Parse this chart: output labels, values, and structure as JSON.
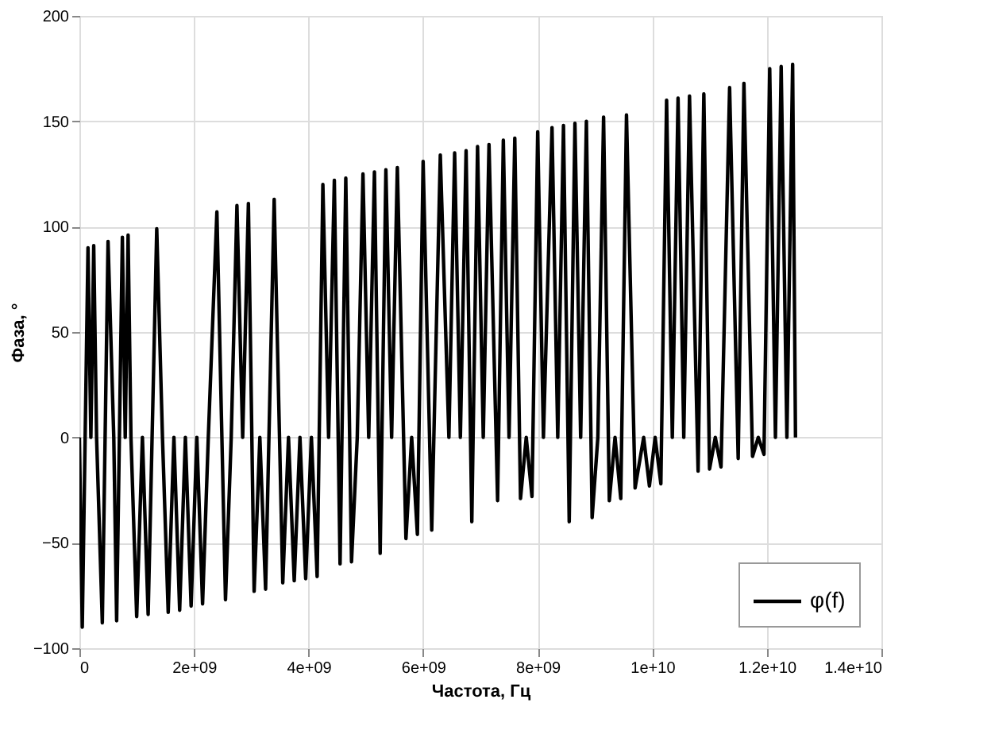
{
  "chart_data": {
    "type": "line",
    "xlabel": "Частота, Гц",
    "ylabel": "Фаза, °",
    "xlim": [
      0,
      14000000000.0
    ],
    "ylim": [
      -100,
      200
    ],
    "xticks": [
      0,
      {
        "value": 2000000000.0,
        "label": "2e+09"
      },
      {
        "value": 4000000000.0,
        "label": "4e+09"
      },
      {
        "value": 6000000000.0,
        "label": "6e+09"
      },
      {
        "value": 8000000000.0,
        "label": "8e+09"
      },
      {
        "value": 10000000000.0,
        "label": "1e+10"
      },
      {
        "value": 12000000000.0,
        "label": "1.2e+10"
      },
      {
        "value": 14000000000.0,
        "label": "1.4e+10"
      }
    ],
    "yticks": [
      -100,
      -50,
      0,
      50,
      100,
      150,
      200
    ],
    "grid": true,
    "legend": "bottom right",
    "marker": "none",
    "line_style": "solid",
    "series": [
      {
        "name": "φ(f)",
        "color": "#000000",
        "x": [
          0,
          50000000.0,
          150000000.0,
          200000000.0,
          250000000.0,
          300000000.0,
          400000000.0,
          500000000.0,
          600000000.0,
          650000000.0,
          750000000.0,
          800000000.0,
          850000000.0,
          900000000.0,
          1000000000.0,
          1100000000.0,
          1200000000.0,
          1350000000.0,
          1450000000.0,
          1550000000.0,
          1650000000.0,
          1750000000.0,
          1850000000.0,
          1950000000.0,
          2050000000.0,
          2150000000.0,
          2250000000.0,
          2400000000.0,
          2550000000.0,
          2650000000.0,
          2750000000.0,
          2850000000.0,
          2950000000.0,
          3050000000.0,
          3150000000.0,
          3250000000.0,
          3400000000.0,
          3550000000.0,
          3650000000.0,
          3750000000.0,
          3850000000.0,
          3950000000.0,
          4050000000.0,
          4150000000.0,
          4250000000.0,
          4350000000.0,
          4450000000.0,
          4550000000.0,
          4650000000.0,
          4750000000.0,
          4850000000.0,
          4950000000.0,
          5050000000.0,
          5150000000.0,
          5250000000.0,
          5350000000.0,
          5450000000.0,
          5550000000.0,
          5700000000.0,
          5800000000.0,
          5900000000.0,
          6000000000.0,
          6150000000.0,
          6300000000.0,
          6450000000.0,
          6550000000.0,
          6650000000.0,
          6750000000.0,
          6850000000.0,
          6950000000.0,
          7050000000.0,
          7150000000.0,
          7300000000.0,
          7400000000.0,
          7500000000.0,
          7600000000.0,
          7700000000.0,
          7800000000.0,
          7900000000.0,
          8000000000.0,
          8100000000.0,
          8250000000.0,
          8350000000.0,
          8450000000.0,
          8550000000.0,
          8650000000.0,
          8750000000.0,
          8850000000.0,
          8950000000.0,
          9050000000.0,
          9150000000.0,
          9250000000.0,
          9350000000.0,
          9450000000.0,
          9550000000.0,
          9700000000.0,
          9850000000.0,
          9950000000.0,
          10050000000.0,
          10150000000.0,
          10250000000.0,
          10350000000.0,
          10450000000.0,
          10550000000.0,
          10650000000.0,
          10800000000.0,
          10900000000.0,
          11000000000.0,
          11100000000.0,
          11200000000.0,
          11350000000.0,
          11500000000.0,
          11600000000.0,
          11750000000.0,
          11850000000.0,
          11950000000.0,
          12050000000.0,
          12150000000.0,
          12250000000.0,
          12350000000.0,
          12450000000.0,
          12500000000.0
        ],
        "values": [
          0,
          -90,
          90,
          0,
          91,
          0,
          -88,
          93,
          0,
          -87,
          95,
          0,
          96,
          0,
          -85,
          0,
          -84,
          99,
          0,
          -83,
          0,
          -82,
          0,
          -80,
          0,
          -79,
          0,
          107,
          -77,
          0,
          110,
          0,
          111,
          -73,
          0,
          -72,
          113,
          -69,
          0,
          -68,
          0,
          -67,
          0,
          -66,
          120,
          0,
          122,
          -60,
          123,
          -59,
          0,
          125,
          0,
          126,
          -55,
          127,
          0,
          128,
          -48,
          0,
          -46,
          131,
          -44,
          134,
          0,
          135,
          0,
          136,
          -40,
          138,
          0,
          139,
          -30,
          141,
          0,
          142,
          -29,
          0,
          -28,
          145,
          0,
          147,
          0,
          148,
          -40,
          149,
          0,
          150,
          -38,
          0,
          152,
          -30,
          0,
          -29,
          153,
          -24,
          0,
          -23,
          0,
          -22,
          160,
          0,
          161,
          0,
          162,
          -16,
          163,
          -15,
          0,
          -14,
          166,
          -10,
          168,
          -9,
          0,
          -8,
          175,
          0,
          176,
          0,
          177,
          0
        ]
      }
    ]
  }
}
